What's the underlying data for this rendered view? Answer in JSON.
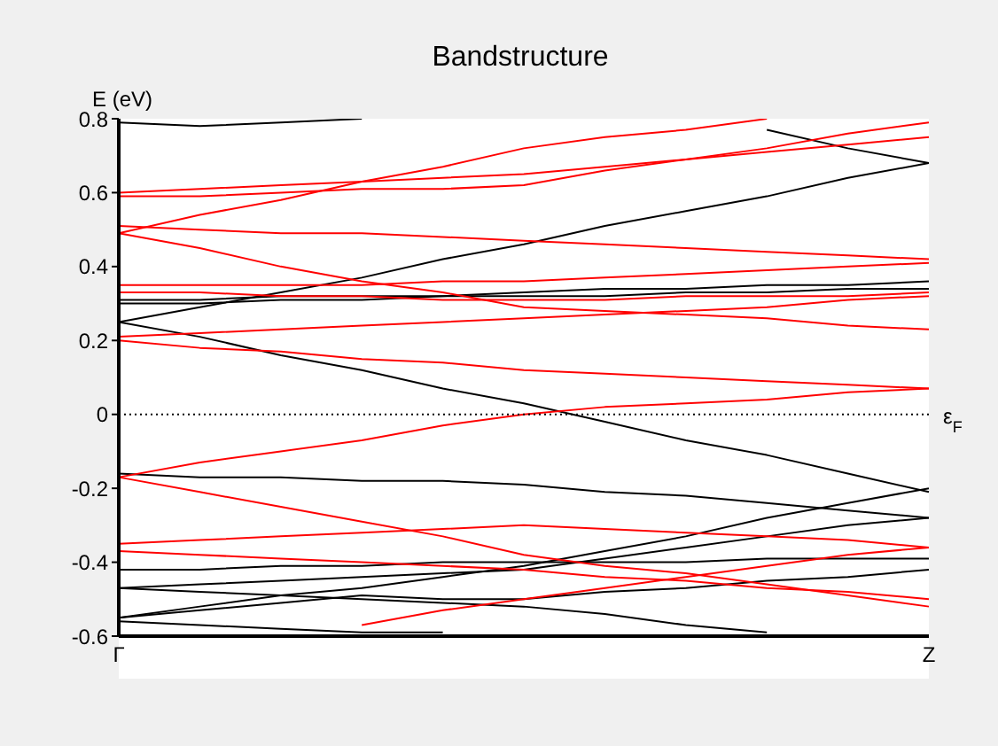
{
  "chart_data": {
    "type": "line",
    "title": "Bandstructure",
    "ylabel": "E (eV)",
    "categories": [
      "Γ",
      null,
      null,
      null,
      null,
      null,
      null,
      null,
      null,
      null,
      "Z"
    ],
    "ylim": [
      -0.6,
      0.8
    ],
    "yticks": [
      -0.6,
      -0.4,
      -0.2,
      0,
      0.2,
      0.4,
      0.6,
      0.8
    ],
    "grid": false,
    "ref_lines": [
      {
        "axis": "y",
        "value": 0,
        "label": "ε$_{F}$",
        "color": "#000000",
        "line_style": "dotted"
      }
    ],
    "series": [
      {
        "color": "#000000",
        "values": [
          0.79,
          0.78,
          0.79,
          0.8,
          null,
          null,
          null,
          null,
          null,
          null,
          null
        ]
      },
      {
        "color": "#000000",
        "values": [
          null,
          null,
          null,
          null,
          null,
          null,
          null,
          null,
          0.77,
          0.72,
          0.68
        ]
      },
      {
        "color": "#000000",
        "values": [
          0.25,
          0.29,
          0.33,
          0.37,
          0.42,
          0.46,
          0.51,
          0.55,
          0.59,
          0.64,
          0.68
        ]
      },
      {
        "color": "#000000",
        "values": [
          0.25,
          0.21,
          0.16,
          0.12,
          0.07,
          0.03,
          -0.02,
          -0.07,
          -0.11,
          -0.16,
          -0.21
        ]
      },
      {
        "color": "#000000",
        "values": [
          0.31,
          0.31,
          0.32,
          0.32,
          0.32,
          0.33,
          0.34,
          0.34,
          0.35,
          0.35,
          0.36
        ]
      },
      {
        "color": "#000000",
        "values": [
          0.3,
          0.3,
          0.31,
          0.31,
          0.32,
          0.32,
          0.32,
          0.33,
          0.33,
          0.34,
          0.34
        ]
      },
      {
        "color": "#000000",
        "values": [
          -0.16,
          -0.17,
          -0.17,
          -0.18,
          -0.18,
          -0.19,
          -0.21,
          -0.22,
          -0.24,
          -0.26,
          -0.28
        ]
      },
      {
        "color": "#000000",
        "values": [
          -0.55,
          -0.52,
          -0.49,
          -0.47,
          -0.44,
          -0.41,
          -0.37,
          -0.33,
          -0.28,
          -0.24,
          -0.2
        ]
      },
      {
        "color": "#000000",
        "values": [
          -0.42,
          -0.42,
          -0.41,
          -0.41,
          -0.4,
          -0.4,
          -0.4,
          -0.4,
          -0.39,
          -0.39,
          -0.39
        ]
      },
      {
        "color": "#000000",
        "values": [
          -0.55,
          -0.53,
          -0.51,
          -0.49,
          -0.5,
          -0.5,
          -0.48,
          -0.47,
          -0.45,
          -0.44,
          -0.42
        ]
      },
      {
        "color": "#000000",
        "values": [
          -0.47,
          -0.46,
          -0.45,
          -0.44,
          -0.43,
          -0.42,
          -0.39,
          -0.36,
          -0.33,
          -0.3,
          -0.28
        ]
      },
      {
        "color": "#000000",
        "values": [
          -0.47,
          -0.48,
          -0.49,
          -0.5,
          -0.51,
          -0.52,
          -0.54,
          -0.57,
          -0.59,
          null,
          null
        ]
      },
      {
        "color": "#000000",
        "values": [
          -0.56,
          -0.57,
          -0.58,
          -0.59,
          -0.59,
          null,
          null,
          null,
          null,
          null,
          null
        ]
      },
      {
        "color": "#ff0000",
        "values": [
          0.49,
          0.54,
          0.58,
          0.63,
          0.67,
          0.72,
          0.75,
          0.77,
          0.8,
          null,
          null
        ]
      },
      {
        "color": "#ff0000",
        "values": [
          0.6,
          0.61,
          0.62,
          0.63,
          0.64,
          0.65,
          0.67,
          0.69,
          0.71,
          0.73,
          0.75
        ]
      },
      {
        "color": "#ff0000",
        "values": [
          0.59,
          0.59,
          0.6,
          0.61,
          0.61,
          0.62,
          0.66,
          0.69,
          0.72,
          0.76,
          0.79
        ]
      },
      {
        "color": "#ff0000",
        "values": [
          0.51,
          0.5,
          0.49,
          0.49,
          0.48,
          0.47,
          0.46,
          0.45,
          0.44,
          0.43,
          0.42
        ]
      },
      {
        "color": "#ff0000",
        "values": [
          0.49,
          0.45,
          0.4,
          0.36,
          0.33,
          0.29,
          0.28,
          0.27,
          0.26,
          0.24,
          0.23
        ]
      },
      {
        "color": "#ff0000",
        "values": [
          0.35,
          0.35,
          0.35,
          0.35,
          0.36,
          0.36,
          0.37,
          0.38,
          0.39,
          0.4,
          0.41
        ]
      },
      {
        "color": "#ff0000",
        "values": [
          0.33,
          0.33,
          0.32,
          0.32,
          0.31,
          0.31,
          0.31,
          0.32,
          0.32,
          0.32,
          0.33
        ]
      },
      {
        "color": "#ff0000",
        "values": [
          0.21,
          0.22,
          0.23,
          0.24,
          0.25,
          0.26,
          0.27,
          0.28,
          0.29,
          0.31,
          0.32
        ]
      },
      {
        "color": "#ff0000",
        "values": [
          0.2,
          0.18,
          0.17,
          0.15,
          0.14,
          0.12,
          0.11,
          0.1,
          0.09,
          0.08,
          0.07
        ]
      },
      {
        "color": "#ff0000",
        "values": [
          -0.17,
          -0.13,
          -0.1,
          -0.07,
          -0.03,
          0,
          0.02,
          0.03,
          0.04,
          0.06,
          0.07
        ]
      },
      {
        "color": "#ff0000",
        "values": [
          -0.17,
          -0.21,
          -0.25,
          -0.29,
          -0.33,
          -0.38,
          -0.41,
          -0.43,
          -0.46,
          -0.49,
          -0.52
        ]
      },
      {
        "color": "#ff0000",
        "values": [
          -0.35,
          -0.34,
          -0.33,
          -0.32,
          -0.31,
          -0.3,
          -0.31,
          -0.32,
          -0.33,
          -0.34,
          -0.36
        ]
      },
      {
        "color": "#ff0000",
        "values": [
          -0.37,
          -0.38,
          -0.39,
          -0.4,
          -0.41,
          -0.42,
          -0.44,
          -0.45,
          -0.47,
          -0.48,
          -0.5
        ]
      },
      {
        "color": "#ff0000",
        "values": [
          null,
          null,
          null,
          -0.57,
          -0.53,
          -0.5,
          -0.47,
          -0.44,
          -0.41,
          -0.38,
          -0.36
        ]
      }
    ]
  }
}
